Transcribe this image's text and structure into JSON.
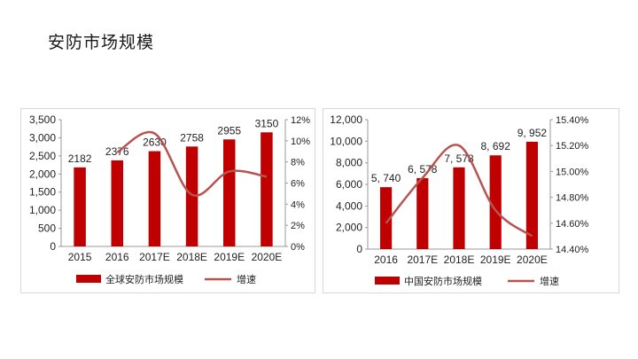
{
  "page": {
    "title": "安防市场规模"
  },
  "colors": {
    "bar": "#c00000",
    "line": "#b85450",
    "axis": "#999999"
  },
  "chart_data": [
    {
      "type": "bar",
      "categories": [
        "2015",
        "2016",
        "2017E",
        "2018E",
        "2019E",
        "2020E"
      ],
      "series": [
        {
          "name": "全球安防市场规模",
          "type": "bar",
          "axis": "left",
          "values": [
            2182,
            2376,
            2630,
            2758,
            2955,
            3150
          ]
        },
        {
          "name": "增速",
          "type": "line",
          "axis": "right",
          "values": [
            null,
            8.9,
            10.7,
            4.9,
            7.1,
            6.6
          ]
        }
      ],
      "data_labels": [
        "2182",
        "2376",
        "2630",
        "2758",
        "2955",
        "3150"
      ],
      "y_ticks": [
        "0",
        "500",
        "1,000",
        "1,500",
        "2,000",
        "2,500",
        "3,000",
        "3,500"
      ],
      "y2_ticks": [
        "0%",
        "2%",
        "4%",
        "6%",
        "8%",
        "10%",
        "12%"
      ],
      "ylim": [
        0,
        3500
      ],
      "y2lim": [
        0,
        12
      ],
      "legend_position": "bottom"
    },
    {
      "type": "bar",
      "categories": [
        "2016",
        "2017E",
        "2018E",
        "2019E",
        "2020E"
      ],
      "series": [
        {
          "name": "中国安防市场规模",
          "type": "bar",
          "axis": "left",
          "values": [
            5740,
            6578,
            7578,
            8692,
            9952
          ]
        },
        {
          "name": "增速",
          "type": "line",
          "axis": "right",
          "values": [
            14.6,
            14.95,
            15.2,
            14.7,
            14.5
          ]
        }
      ],
      "data_labels": [
        "5, 740",
        "6, 578",
        "7, 578",
        "8, 692",
        "9, 952"
      ],
      "y_ticks": [
        "0",
        "2,000",
        "4,000",
        "6,000",
        "8,000",
        "10,000",
        "12,000"
      ],
      "y2_ticks": [
        "14.40%",
        "14.60%",
        "14.80%",
        "15.00%",
        "15.20%",
        "15.40%"
      ],
      "ylim": [
        0,
        12000
      ],
      "y2lim": [
        14.4,
        15.4
      ],
      "legend_position": "bottom"
    }
  ]
}
